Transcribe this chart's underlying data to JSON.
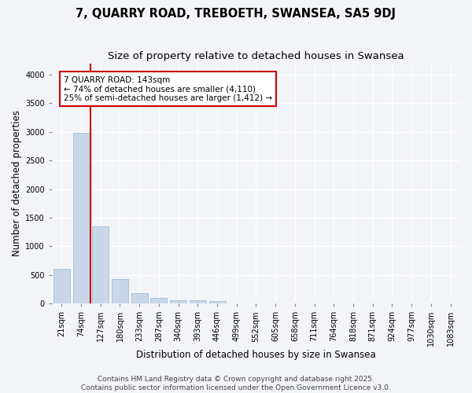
{
  "title": "7, QUARRY ROAD, TREBOETH, SWANSEA, SA5 9DJ",
  "subtitle": "Size of property relative to detached houses in Swansea",
  "xlabel": "Distribution of detached houses by size in Swansea",
  "ylabel": "Number of detached properties",
  "bar_color": "#c8d8ea",
  "bar_edge_color": "#9ab4cc",
  "vline_color": "#cc0000",
  "vline_x": 1.5,
  "categories": [
    "21sqm",
    "74sqm",
    "127sqm",
    "180sqm",
    "233sqm",
    "287sqm",
    "340sqm",
    "393sqm",
    "446sqm",
    "499sqm",
    "552sqm",
    "605sqm",
    "658sqm",
    "711sqm",
    "764sqm",
    "818sqm",
    "871sqm",
    "924sqm",
    "977sqm",
    "1030sqm",
    "1083sqm"
  ],
  "values": [
    600,
    2980,
    1350,
    430,
    175,
    100,
    60,
    50,
    40,
    0,
    0,
    0,
    0,
    0,
    0,
    0,
    0,
    0,
    0,
    0,
    0
  ],
  "ylim": [
    0,
    4200
  ],
  "yticks": [
    0,
    500,
    1000,
    1500,
    2000,
    2500,
    3000,
    3500,
    4000
  ],
  "annotation_text": "7 QUARRY ROAD: 143sqm\n← 74% of detached houses are smaller (4,110)\n25% of semi-detached houses are larger (1,412) →",
  "box_facecolor": "#ffffff",
  "box_edgecolor": "#cc0000",
  "footnote": "Contains HM Land Registry data © Crown copyright and database right 2025.\nContains public sector information licensed under the Open Government Licence v3.0.",
  "bg_color": "#f2f4f8",
  "grid_color": "#ffffff",
  "title_fontsize": 10.5,
  "subtitle_fontsize": 9.5,
  "axis_fontsize": 8.5,
  "tick_fontsize": 7,
  "footnote_fontsize": 6.5
}
